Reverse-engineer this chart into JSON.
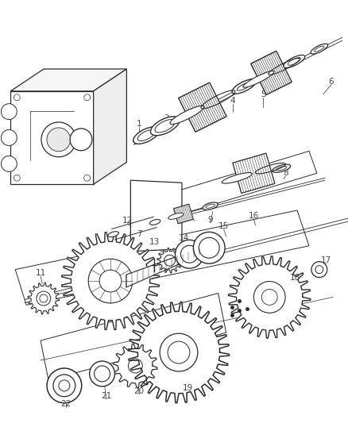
{
  "bg_color": "#ffffff",
  "line_color": "#2a2a2a",
  "label_color": "#444444",
  "fig_width": 4.39,
  "fig_height": 5.33,
  "dpi": 100
}
